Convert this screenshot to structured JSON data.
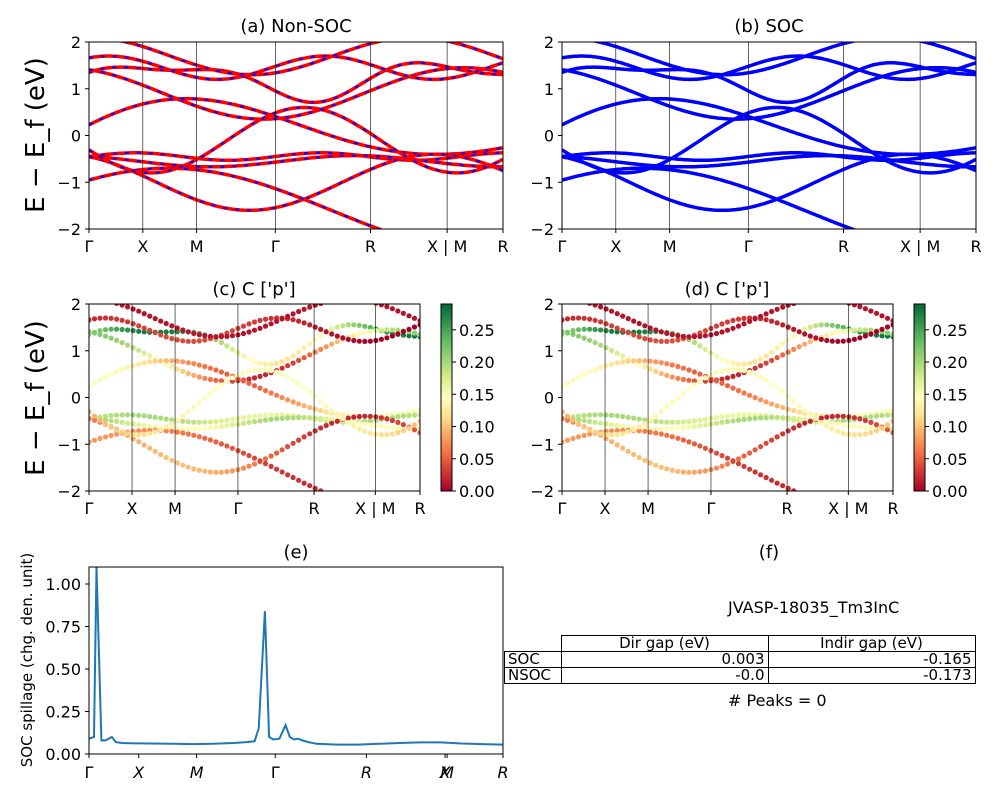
{
  "panels": {
    "a": {
      "title": "(a) Non-SOC",
      "ylabel": "E − E_f (eV)"
    },
    "b": {
      "title": "(b) SOC"
    },
    "c": {
      "title": "(c)  C ['p']",
      "ylabel": "E − E_f (eV)"
    },
    "d": {
      "title": "(d) C ['p']"
    },
    "e": {
      "title": "(e)",
      "ylabel": "SOC spillage (chg. den. unit)"
    },
    "f": {
      "title": "(f)"
    }
  },
  "band_axes": {
    "ylim": [
      -2,
      2
    ],
    "yticks": [
      "2",
      "1",
      "0",
      "−1",
      "−2"
    ],
    "kpoint_labels": [
      "Γ",
      "X",
      "M",
      "Γ",
      "R",
      "X | M",
      "R"
    ]
  },
  "colorbar": {
    "ticks": [
      "0.00",
      "0.05",
      "0.10",
      "0.15",
      "0.20",
      "0.25"
    ],
    "range": [
      0,
      0.29
    ],
    "colormap": "RdYlGn"
  },
  "colors": {
    "nonsoc_line": "#ff0000",
    "nonsoc_dash": "#0000ff",
    "soc_line": "#0000ff",
    "spillage_line": "#1f77b4"
  },
  "info": {
    "material": "JVASP-18035_Tm3InC",
    "headers": [
      "Dir gap (eV)",
      "Indir gap (eV)"
    ],
    "rows": [
      {
        "label": "SOC",
        "dir": "0.003",
        "indir": "-0.165"
      },
      {
        "label": "NSOC",
        "dir": "-0.0",
        "indir": "-0.173"
      }
    ],
    "peaks": "# Peaks = 0"
  },
  "chart_data": [
    {
      "type": "line",
      "title": "(e)",
      "ylabel": "SOC spillage (chg. den. unit)",
      "ylim": [
        0,
        1.1
      ],
      "yticks": [
        "0.00",
        "0.25",
        "0.50",
        "0.75",
        "1.00"
      ],
      "xticks": [
        "Γ",
        "X",
        "M",
        "Γ",
        "R",
        "X",
        "M",
        "R"
      ],
      "x": [
        0,
        0.012,
        0.018,
        0.03,
        0.04,
        0.055,
        0.065,
        0.08,
        0.1,
        0.15,
        0.2,
        0.25,
        0.3,
        0.35,
        0.38,
        0.4,
        0.41,
        0.425,
        0.435,
        0.445,
        0.46,
        0.475,
        0.485,
        0.495,
        0.505,
        0.515,
        0.53,
        0.55,
        0.6,
        0.65,
        0.7,
        0.75,
        0.8,
        0.85,
        0.9,
        0.95,
        1.0
      ],
      "values": [
        0.09,
        0.1,
        1.1,
        0.08,
        0.08,
        0.1,
        0.07,
        0.065,
        0.063,
        0.062,
        0.06,
        0.058,
        0.06,
        0.065,
        0.07,
        0.075,
        0.15,
        0.84,
        0.1,
        0.085,
        0.09,
        0.17,
        0.1,
        0.085,
        0.09,
        0.08,
        0.07,
        0.06,
        0.055,
        0.055,
        0.06,
        0.065,
        0.068,
        0.068,
        0.062,
        0.058,
        0.055
      ]
    }
  ]
}
